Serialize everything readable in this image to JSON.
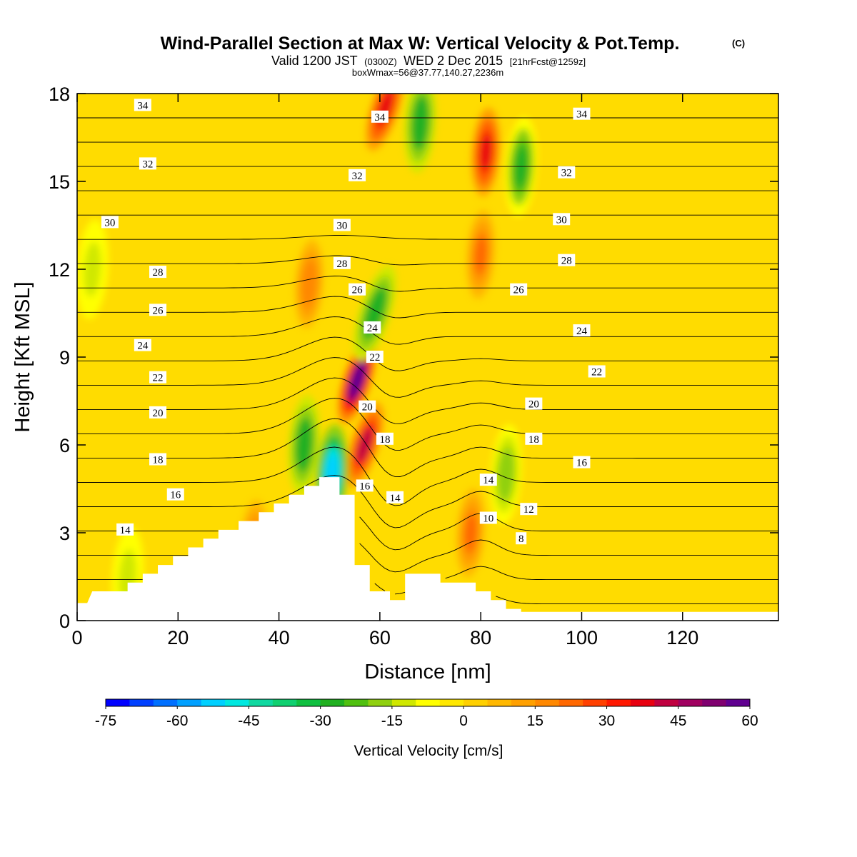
{
  "header": {
    "title": "Wind-Parallel Section at Max W: Vertical Velocity & Pot.Temp.",
    "copyright": "(C)",
    "subtitle_a": "Valid 1200 JST",
    "subtitle_b": "(0300Z)",
    "subtitle_c": "WED 2 Dec 2015",
    "subtitle_d": "[21hrFcst@1259z]",
    "note": "boxWmax=56@37.77,140.27,2236m"
  },
  "chart_data": {
    "type": "heatmap",
    "title": "Wind-Parallel Section at Max W: Vertical Velocity & Pot.Temp.",
    "xlabel": "Distance [nm]",
    "ylabel": "Height [Kft MSL]",
    "xlim": [
      0,
      139
    ],
    "ylim": [
      0,
      18
    ],
    "x_ticks": [
      0,
      20,
      40,
      60,
      80,
      100,
      120
    ],
    "y_ticks": [
      0,
      3,
      6,
      9,
      12,
      15,
      18
    ],
    "x_tick_labels": [
      "0",
      "20",
      "40",
      "60",
      "80",
      "100",
      "120"
    ],
    "y_tick_labels": [
      "0",
      "3",
      "6",
      "9",
      "12",
      "15",
      "18"
    ],
    "colorbar": {
      "label": "Vertical Velocity [cm/s]",
      "min": -75,
      "max": 60,
      "step": 5,
      "tick_values": [
        -75,
        -60,
        -45,
        -30,
        -15,
        0,
        15,
        30,
        45,
        60
      ],
      "tick_labels": [
        "-75",
        "-60",
        "-45",
        "-30",
        "-15",
        "0",
        "15",
        "30",
        "45",
        "60"
      ],
      "colors": [
        "#0000ff",
        "#0040ff",
        "#0070ff",
        "#00a0ff",
        "#00d0ff",
        "#00e8e0",
        "#10d8a0",
        "#10d070",
        "#10c040",
        "#20b020",
        "#50c010",
        "#90d010",
        "#d0e800",
        "#ffff00",
        "#ffe800",
        "#ffd000",
        "#ffb800",
        "#ffa000",
        "#ff8800",
        "#ff6800",
        "#ff4000",
        "#ff1800",
        "#e80010",
        "#c00040",
        "#a00060",
        "#800070",
        "#600090"
      ]
    },
    "terrain": {
      "x": [
        0,
        2,
        3,
        10,
        10,
        13,
        13,
        16,
        16,
        19,
        19,
        22,
        22,
        25,
        25,
        28,
        28,
        32,
        32,
        36,
        36,
        39,
        39,
        42,
        42,
        45,
        45,
        48,
        48,
        52,
        52,
        55,
        55,
        58,
        58,
        62,
        62,
        65,
        65,
        72,
        72,
        79,
        79,
        82,
        82,
        85,
        85,
        88,
        88,
        100,
        139
      ],
      "height": [
        0.6,
        0.6,
        1.0,
        1.0,
        1.3,
        1.3,
        1.6,
        1.6,
        1.9,
        1.9,
        2.2,
        2.2,
        2.5,
        2.5,
        2.8,
        2.8,
        3.1,
        3.1,
        3.4,
        3.4,
        3.7,
        3.7,
        4.0,
        4.0,
        4.3,
        4.3,
        4.6,
        4.6,
        4.9,
        4.9,
        4.3,
        4.3,
        1.9,
        1.9,
        1.0,
        1.0,
        0.7,
        0.7,
        1.6,
        1.6,
        1.3,
        1.3,
        1.0,
        1.0,
        0.7,
        0.7,
        0.4,
        0.4,
        0.3,
        0.3,
        0.3
      ]
    },
    "vertical_velocity_features": [
      {
        "kind": "updraft",
        "x": 55.5,
        "y": 8.2,
        "peak": 56
      },
      {
        "kind": "updraft",
        "x": 57,
        "y": 6.0,
        "peak": 40
      },
      {
        "kind": "updraft",
        "x": 61,
        "y": 17.5,
        "peak": 35
      },
      {
        "kind": "updraft",
        "x": 81,
        "y": 16.0,
        "peak": 35
      },
      {
        "kind": "updraft",
        "x": 80,
        "y": 12.5,
        "peak": 20
      },
      {
        "kind": "updraft",
        "x": 46,
        "y": 11.5,
        "peak": 18
      },
      {
        "kind": "updraft",
        "x": 35,
        "y": 2.6,
        "peak": 20
      },
      {
        "kind": "updraft",
        "x": 78,
        "y": 3.0,
        "peak": 22
      },
      {
        "kind": "downdraft",
        "x": 50.5,
        "y": 5.0,
        "peak": -55
      },
      {
        "kind": "downdraft",
        "x": 45,
        "y": 6.0,
        "peak": -30
      },
      {
        "kind": "downdraft",
        "x": 59,
        "y": 10.5,
        "peak": -30
      },
      {
        "kind": "downdraft",
        "x": 68,
        "y": 17.0,
        "peak": -30
      },
      {
        "kind": "downdraft",
        "x": 88,
        "y": 15.5,
        "peak": -28
      },
      {
        "kind": "downdraft",
        "x": 85,
        "y": 5.0,
        "peak": -20
      },
      {
        "kind": "downdraft",
        "x": 3,
        "y": 12.0,
        "peak": -15
      },
      {
        "kind": "downdraft",
        "x": 10,
        "y": 1.5,
        "peak": -15
      }
    ],
    "contour_levels": [
      8,
      10,
      12,
      14,
      16,
      18,
      20,
      22,
      24,
      26,
      28,
      30,
      32,
      34
    ],
    "contour_labels": [
      {
        "text": "34",
        "x": 13,
        "y": 17.6
      },
      {
        "text": "34",
        "x": 60,
        "y": 17.2
      },
      {
        "text": "34",
        "x": 100,
        "y": 17.3
      },
      {
        "text": "32",
        "x": 14,
        "y": 15.6
      },
      {
        "text": "32",
        "x": 55.5,
        "y": 15.2
      },
      {
        "text": "32",
        "x": 97,
        "y": 15.3
      },
      {
        "text": "30",
        "x": 6.5,
        "y": 13.6
      },
      {
        "text": "30",
        "x": 52.5,
        "y": 13.5
      },
      {
        "text": "30",
        "x": 96,
        "y": 13.7
      },
      {
        "text": "28",
        "x": 16,
        "y": 11.9
      },
      {
        "text": "28",
        "x": 52.5,
        "y": 12.2
      },
      {
        "text": "28",
        "x": 97,
        "y": 12.3
      },
      {
        "text": "26",
        "x": 16,
        "y": 10.6
      },
      {
        "text": "26",
        "x": 55.5,
        "y": 11.3
      },
      {
        "text": "26",
        "x": 87.5,
        "y": 11.3
      },
      {
        "text": "24",
        "x": 13,
        "y": 9.4
      },
      {
        "text": "24",
        "x": 58.5,
        "y": 10.0
      },
      {
        "text": "24",
        "x": 100,
        "y": 9.9
      },
      {
        "text": "22",
        "x": 16,
        "y": 8.3
      },
      {
        "text": "22",
        "x": 59,
        "y": 9.0
      },
      {
        "text": "22",
        "x": 103,
        "y": 8.5
      },
      {
        "text": "20",
        "x": 16,
        "y": 7.1
      },
      {
        "text": "20",
        "x": 57.5,
        "y": 7.3
      },
      {
        "text": "20",
        "x": 90.5,
        "y": 7.4
      },
      {
        "text": "18",
        "x": 16,
        "y": 5.5
      },
      {
        "text": "18",
        "x": 61,
        "y": 6.2
      },
      {
        "text": "18",
        "x": 90.5,
        "y": 6.2
      },
      {
        "text": "16",
        "x": 19.5,
        "y": 4.3
      },
      {
        "text": "16",
        "x": 57,
        "y": 4.6
      },
      {
        "text": "16",
        "x": 100,
        "y": 5.4
      },
      {
        "text": "14",
        "x": 9.5,
        "y": 3.1
      },
      {
        "text": "14",
        "x": 63,
        "y": 4.2
      },
      {
        "text": "14",
        "x": 81.5,
        "y": 4.8
      },
      {
        "text": "12",
        "x": 89.5,
        "y": 3.8
      },
      {
        "text": "10",
        "x": 81.5,
        "y": 3.5
      },
      {
        "text": "8",
        "x": 88,
        "y": 2.8
      }
    ]
  }
}
